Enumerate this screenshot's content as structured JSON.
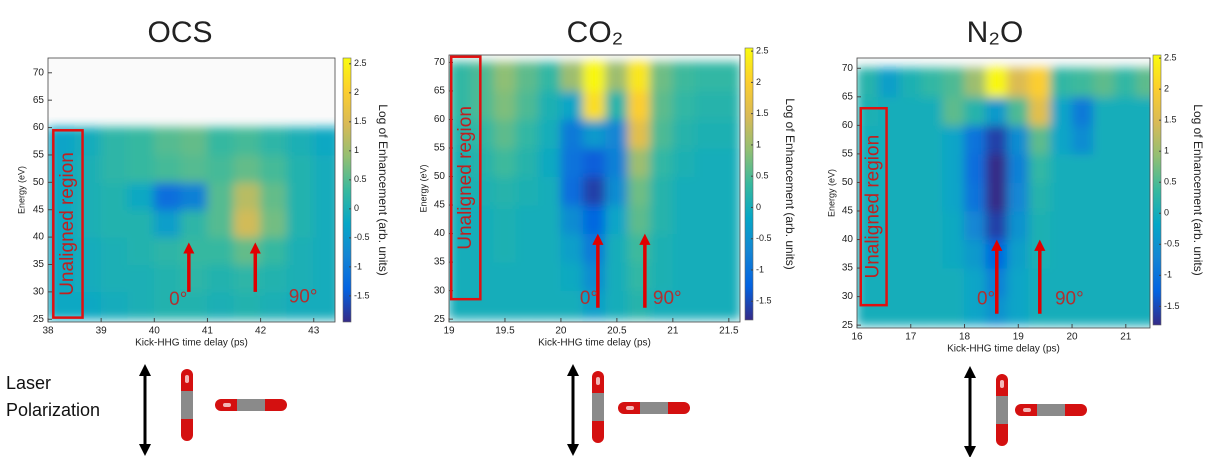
{
  "chart_data": [
    {
      "type": "heatmap",
      "title": "OCS",
      "xlabel": "Kick-HHG time delay (ps)",
      "ylabel": "Energy (eV)",
      "colorbar_label": "Log of Enhancement (arb. units)",
      "xlim": [
        38,
        43.4
      ],
      "ylim": [
        24.5,
        72.7
      ],
      "xticks": [
        38,
        39,
        40,
        41,
        42,
        43
      ],
      "yticks": [
        25,
        30,
        35,
        40,
        45,
        50,
        55,
        60,
        65,
        70
      ],
      "clim": [
        -1.95,
        2.6
      ],
      "cticks": [
        -1.5,
        -1,
        -0.5,
        0,
        0.5,
        1,
        1.5,
        2,
        2.5
      ],
      "colormap": "parula",
      "x": [
        38.25,
        38.75,
        39.25,
        39.75,
        40.25,
        40.75,
        41.25,
        41.75,
        42.25,
        42.75,
        43.25
      ],
      "y": [
        27.5,
        32.5,
        37.5,
        42.5,
        47.5,
        52.5,
        57.5
      ],
      "z": [
        [
          -0.2,
          -0.2,
          -0.1,
          0,
          0.1,
          0.1,
          0,
          0.1,
          0,
          -0.1,
          -0.1
        ],
        [
          -0.2,
          -0.1,
          0,
          0,
          0.1,
          0.2,
          0.1,
          0.2,
          0.1,
          0,
          -0.1
        ],
        [
          -0.2,
          -0.1,
          0,
          0.1,
          0.2,
          0.3,
          0.3,
          0.6,
          0.3,
          0,
          -0.1
        ],
        [
          -0.2,
          0,
          0.1,
          0.1,
          -0.4,
          0.2,
          0.5,
          1.4,
          0.7,
          0.1,
          -0.1
        ],
        [
          -0.2,
          0,
          0.1,
          -0.2,
          -1.2,
          -0.9,
          0.5,
          1.2,
          0.6,
          0.1,
          -0.1
        ],
        [
          -0.2,
          0,
          0.2,
          0.3,
          0.4,
          0.5,
          0.4,
          0.6,
          0.4,
          0.1,
          -0.1
        ],
        [
          -0.3,
          -0.1,
          0.2,
          0.3,
          0.5,
          0.6,
          0.3,
          0.4,
          0.2,
          0,
          -0.2
        ]
      ],
      "region": {
        "label": "Unaligned region",
        "x": [
          38.1,
          38.65
        ],
        "y": [
          25.3,
          59.5
        ]
      },
      "annotations": [
        {
          "text": "0°",
          "x": 40.45,
          "y": 28.5
        },
        {
          "text": "90°",
          "x": 42.8,
          "y": 29
        }
      ],
      "arrows": [
        {
          "x": 40.65,
          "y": [
            30,
            38
          ]
        },
        {
          "x": 41.9,
          "y": [
            30,
            38
          ]
        }
      ]
    },
    {
      "type": "heatmap",
      "title": "CO₂",
      "xlabel": "Kick-HHG time delay (ps)",
      "ylabel": "Energy (eV)",
      "colorbar_label": "Log of Enhancement (arb. units)",
      "xlim": [
        19,
        21.6
      ],
      "ylim": [
        24.5,
        71.3
      ],
      "xticks": [
        19,
        19.5,
        20,
        20.5,
        21,
        21.5
      ],
      "yticks": [
        25,
        30,
        35,
        40,
        45,
        50,
        55,
        60,
        65,
        70
      ],
      "clim": [
        -1.8,
        2.55
      ],
      "cticks": [
        -1.5,
        -1,
        -0.5,
        0,
        0.5,
        1,
        1.5,
        2,
        2.5
      ],
      "colormap": "parula",
      "x": [
        19.1,
        19.3,
        19.5,
        19.7,
        19.9,
        20.1,
        20.3,
        20.5,
        20.7,
        20.9,
        21.1,
        21.3,
        21.5
      ],
      "y": [
        27.5,
        32.5,
        37.5,
        42.5,
        47.5,
        52.5,
        57.5,
        62.5,
        67.5
      ],
      "z": [
        [
          0,
          0,
          0,
          0,
          0,
          0,
          -0.3,
          0,
          0.2,
          0,
          0,
          0,
          0
        ],
        [
          0,
          0,
          0,
          0,
          0,
          -0.1,
          -0.6,
          0,
          0.3,
          0.1,
          0,
          0,
          0
        ],
        [
          0,
          0,
          0.1,
          0,
          0,
          -0.3,
          -0.9,
          0,
          0.4,
          0.1,
          0,
          0,
          0
        ],
        [
          0,
          0,
          0.1,
          0,
          0,
          -0.6,
          -1.2,
          -0.2,
          0.6,
          0.2,
          0,
          0,
          0
        ],
        [
          0.1,
          0.1,
          0.2,
          0.1,
          0,
          -1.1,
          -1.6,
          -0.6,
          0.7,
          0.2,
          0,
          0,
          0
        ],
        [
          0.1,
          0.2,
          0.4,
          0.2,
          -0.1,
          -1,
          -1.3,
          -0.8,
          1,
          0.3,
          0.1,
          0,
          0
        ],
        [
          0.2,
          0.3,
          0.6,
          0.3,
          0,
          -0.9,
          -0.4,
          -0.7,
          1.6,
          0.5,
          0.2,
          0.1,
          0.1
        ],
        [
          0.3,
          0.5,
          0.8,
          0.5,
          0.1,
          -0.2,
          2.2,
          0.2,
          2,
          0.6,
          0.3,
          0.2,
          0.2
        ],
        [
          0.3,
          0.5,
          0.9,
          0.6,
          0.3,
          1,
          2.5,
          1,
          2.3,
          0.7,
          0.4,
          0.3,
          0.3
        ]
      ],
      "region": {
        "label": "Unaligned region",
        "x": [
          19.02,
          19.28
        ],
        "y": [
          28.5,
          71
        ]
      },
      "annotations": [
        {
          "text": "0°",
          "x": 20.25,
          "y": 28.5
        },
        {
          "text": "90°",
          "x": 20.95,
          "y": 28.5
        }
      ],
      "arrows": [
        {
          "x": 20.33,
          "y": [
            27,
            39
          ]
        },
        {
          "x": 20.75,
          "y": [
            27,
            39
          ]
        }
      ]
    },
    {
      "type": "heatmap",
      "title": "N₂O",
      "xlabel": "Kick-HHG time delay (ps)",
      "ylabel": "Energy (eV)",
      "colorbar_label": "Log of Enhancement (arb. units)",
      "xlim": [
        16,
        21.45
      ],
      "ylim": [
        24.5,
        71.8
      ],
      "xticks": [
        16,
        17,
        18,
        19,
        20,
        21
      ],
      "yticks": [
        25,
        30,
        35,
        40,
        45,
        50,
        55,
        60,
        65,
        70
      ],
      "clim": [
        -1.8,
        2.55
      ],
      "cticks": [
        -1.5,
        -1,
        -0.5,
        0,
        0.5,
        1,
        1.5,
        2,
        2.5
      ],
      "colormap": "parula",
      "x": [
        16.2,
        16.6,
        17,
        17.4,
        17.8,
        18.2,
        18.6,
        19,
        19.4,
        19.8,
        20.2,
        20.6,
        21,
        21.4
      ],
      "y": [
        27.5,
        32.5,
        37.5,
        42.5,
        47.5,
        52.5,
        57.5,
        62.5,
        67.5
      ],
      "z": [
        [
          0,
          0,
          0,
          0,
          0,
          -0.2,
          -0.5,
          -0.2,
          0,
          0,
          0,
          0,
          0,
          0
        ],
        [
          0,
          0,
          0,
          0,
          0,
          -0.2,
          -0.8,
          -0.2,
          0,
          0,
          0,
          0,
          0,
          0
        ],
        [
          0,
          0,
          0,
          0,
          -0.1,
          -0.4,
          -1.2,
          -0.3,
          0.1,
          0,
          0,
          0,
          0,
          0
        ],
        [
          0,
          0,
          0,
          0,
          -0.1,
          -0.7,
          -1.6,
          -0.5,
          0.1,
          0,
          0,
          0,
          0,
          0
        ],
        [
          0,
          0,
          0,
          0,
          -0.2,
          -1,
          -1.8,
          -0.7,
          0.2,
          0,
          0,
          0,
          0,
          0
        ],
        [
          0,
          0,
          0,
          0,
          -0.2,
          -1.1,
          -1.8,
          -0.8,
          0.3,
          0,
          0,
          0,
          0,
          0
        ],
        [
          0,
          0,
          0,
          0,
          -0.2,
          -1,
          -1.6,
          -0.6,
          0.6,
          -0.2,
          -0.6,
          0,
          0,
          0
        ],
        [
          0.1,
          0,
          0,
          0,
          0.6,
          0.2,
          -0.4,
          0.5,
          1.6,
          -0.2,
          -0.9,
          0,
          0,
          0
        ],
        [
          0.2,
          -0.3,
          0.1,
          0.3,
          0.5,
          1,
          2.5,
          1.5,
          2,
          0.3,
          0.4,
          0.6,
          0.3,
          0.6
        ]
      ],
      "region": {
        "label": "Unaligned region",
        "x": [
          16.07,
          16.55
        ],
        "y": [
          28.5,
          63
        ]
      },
      "annotations": [
        {
          "text": "0°",
          "x": 18.4,
          "y": 29.5
        },
        {
          "text": "90°",
          "x": 19.95,
          "y": 29.5
        }
      ],
      "arrows": [
        {
          "x": 18.6,
          "y": [
            27,
            39
          ]
        },
        {
          "x": 19.4,
          "y": [
            27,
            39
          ]
        }
      ]
    }
  ],
  "polarization_label": "Laser Polarization"
}
